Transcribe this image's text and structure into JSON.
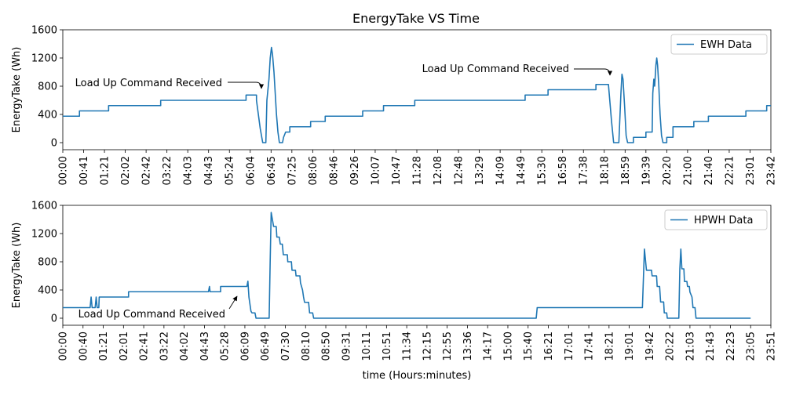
{
  "figure": {
    "title": "EnergyTake VS Time"
  },
  "chart_data": [
    {
      "type": "line",
      "title": "EnergyTake VS Time",
      "xlabel": "",
      "ylabel": "EnergyTake (Wh)",
      "ylim": [
        -100,
        1600
      ],
      "yticks": [
        0,
        400,
        800,
        1200,
        1600
      ],
      "xticks": [
        "00:00",
        "00:41",
        "01:21",
        "02:02",
        "02:42",
        "03:22",
        "04:03",
        "04:43",
        "05:24",
        "06:04",
        "06:45",
        "07:25",
        "08:06",
        "08:46",
        "09:26",
        "10:07",
        "10:47",
        "11:28",
        "12:08",
        "12:48",
        "13:29",
        "14:09",
        "14:49",
        "15:30",
        "16:58",
        "17:38",
        "18:18",
        "18:59",
        "19:39",
        "20:20",
        "21:00",
        "21:40",
        "22:21",
        "23:01",
        "23:42"
      ],
      "legend": "upper-right",
      "color": "#1f77b4",
      "series": [
        {
          "name": "EWH Data",
          "points": [
            [
              0,
              375
            ],
            [
              0.8,
              375
            ],
            [
              0.8,
              450
            ],
            [
              2.2,
              450
            ],
            [
              2.2,
              525
            ],
            [
              4.7,
              525
            ],
            [
              4.7,
              600
            ],
            [
              8.8,
              600
            ],
            [
              8.8,
              675
            ],
            [
              9.3,
              675
            ],
            [
              9.3,
              600
            ],
            [
              9.48,
              200
            ],
            [
              9.6,
              0
            ],
            [
              9.75,
              0
            ],
            [
              9.8,
              600
            ],
            [
              9.9,
              900
            ],
            [
              9.96,
              1200
            ],
            [
              10.02,
              1350
            ],
            [
              10.07,
              1250
            ],
            [
              10.14,
              1000
            ],
            [
              10.2,
              700
            ],
            [
              10.26,
              400
            ],
            [
              10.33,
              150
            ],
            [
              10.4,
              0
            ],
            [
              10.55,
              0
            ],
            [
              10.6,
              75
            ],
            [
              10.7,
              150
            ],
            [
              10.9,
              150
            ],
            [
              10.9,
              225
            ],
            [
              11.9,
              225
            ],
            [
              11.9,
              300
            ],
            [
              12.6,
              300
            ],
            [
              12.6,
              375
            ],
            [
              14.4,
              375
            ],
            [
              14.4,
              450
            ],
            [
              15.4,
              450
            ],
            [
              15.4,
              525
            ],
            [
              16.9,
              525
            ],
            [
              16.9,
              600
            ],
            [
              22.2,
              600
            ],
            [
              22.2,
              675
            ],
            [
              23.3,
              675
            ],
            [
              23.3,
              750
            ],
            [
              25.6,
              750
            ],
            [
              25.6,
              825
            ],
            [
              26.2,
              825
            ],
            [
              26.35,
              300
            ],
            [
              26.45,
              0
            ],
            [
              26.7,
              0
            ],
            [
              26.8,
              700
            ],
            [
              26.85,
              970
            ],
            [
              26.9,
              900
            ],
            [
              26.98,
              500
            ],
            [
              27.05,
              100
            ],
            [
              27.12,
              0
            ],
            [
              27.4,
              0
            ],
            [
              27.4,
              75
            ],
            [
              28,
              75
            ],
            [
              28,
              150
            ],
            [
              28.3,
              150
            ],
            [
              28.33,
              700
            ],
            [
              28.38,
              900
            ],
            [
              28.42,
              800
            ],
            [
              28.48,
              1100
            ],
            [
              28.52,
              1200
            ],
            [
              28.56,
              1100
            ],
            [
              28.62,
              800
            ],
            [
              28.68,
              400
            ],
            [
              28.75,
              100
            ],
            [
              28.82,
              0
            ],
            [
              29,
              0
            ],
            [
              29,
              75
            ],
            [
              29.3,
              75
            ],
            [
              29.3,
              225
            ],
            [
              30.3,
              225
            ],
            [
              30.3,
              300
            ],
            [
              31,
              300
            ],
            [
              31,
              375
            ],
            [
              32.8,
              375
            ],
            [
              32.8,
              450
            ],
            [
              33.8,
              450
            ],
            [
              33.8,
              525
            ],
            [
              34,
              525
            ]
          ]
        }
      ],
      "annotations": [
        {
          "text": "Load Up Command Received",
          "target": [
            9.3,
            675
          ]
        },
        {
          "text": "Load Up Command Received",
          "target": [
            26.15,
            850
          ]
        }
      ]
    },
    {
      "type": "line",
      "title": "",
      "xlabel": "time (Hours:minutes)",
      "ylabel": "EnergyTake (Wh)",
      "ylim": [
        -100,
        1600
      ],
      "yticks": [
        0,
        400,
        800,
        1200,
        1600
      ],
      "xticks": [
        "00:00",
        "00:40",
        "01:21",
        "02:01",
        "02:41",
        "03:22",
        "04:02",
        "04:43",
        "05:28",
        "06:09",
        "06:49",
        "07:30",
        "08:10",
        "08:50",
        "09:31",
        "10:11",
        "10:51",
        "11:34",
        "12:15",
        "12:55",
        "13:36",
        "14:17",
        "15:00",
        "15:40",
        "16:21",
        "17:01",
        "17:41",
        "18:21",
        "19:01",
        "19:42",
        "20:22",
        "21:03",
        "21:43",
        "22:23",
        "23:05",
        "23:51"
      ],
      "legend": "upper-right",
      "color": "#1f77b4",
      "series": [
        {
          "name": "HPWH Data",
          "points": [
            [
              0,
              150
            ],
            [
              1.35,
              150
            ],
            [
              1.4,
              300
            ],
            [
              1.45,
              150
            ],
            [
              1.6,
              150
            ],
            [
              1.65,
              300
            ],
            [
              1.7,
              150
            ],
            [
              1.78,
              150
            ],
            [
              1.8,
              300
            ],
            [
              3.25,
              300
            ],
            [
              3.25,
              375
            ],
            [
              7.2,
              375
            ],
            [
              7.25,
              450
            ],
            [
              7.28,
              375
            ],
            [
              7.8,
              375
            ],
            [
              7.8,
              450
            ],
            [
              9.1,
              450
            ],
            [
              9.15,
              525
            ],
            [
              9.2,
              300
            ],
            [
              9.3,
              100
            ],
            [
              9.35,
              75
            ],
            [
              9.5,
              75
            ],
            [
              9.55,
              0
            ],
            [
              10.2,
              0
            ],
            [
              10.25,
              800
            ],
            [
              10.3,
              1500
            ],
            [
              10.36,
              1400
            ],
            [
              10.42,
              1300
            ],
            [
              10.55,
              1300
            ],
            [
              10.58,
              1150
            ],
            [
              10.7,
              1150
            ],
            [
              10.75,
              1050
            ],
            [
              10.85,
              1050
            ],
            [
              10.9,
              900
            ],
            [
              11.1,
              900
            ],
            [
              11.12,
              800
            ],
            [
              11.3,
              800
            ],
            [
              11.33,
              680
            ],
            [
              11.5,
              680
            ],
            [
              11.53,
              600
            ],
            [
              11.72,
              600
            ],
            [
              11.75,
              500
            ],
            [
              11.85,
              400
            ],
            [
              11.9,
              300
            ],
            [
              11.95,
              225
            ],
            [
              12.15,
              225
            ],
            [
              12.2,
              75
            ],
            [
              12.35,
              75
            ],
            [
              12.4,
              0
            ],
            [
              23.4,
              0
            ],
            [
              23.45,
              150
            ],
            [
              28.65,
              150
            ],
            [
              28.75,
              980
            ],
            [
              28.85,
              680
            ],
            [
              29.1,
              680
            ],
            [
              29.13,
              600
            ],
            [
              29.35,
              600
            ],
            [
              29.38,
              450
            ],
            [
              29.5,
              450
            ],
            [
              29.55,
              230
            ],
            [
              29.7,
              230
            ],
            [
              29.73,
              75
            ],
            [
              29.85,
              75
            ],
            [
              29.88,
              0
            ],
            [
              30.45,
              0
            ],
            [
              30.5,
              700
            ],
            [
              30.55,
              980
            ],
            [
              30.6,
              700
            ],
            [
              30.7,
              700
            ],
            [
              30.73,
              520
            ],
            [
              30.85,
              520
            ],
            [
              30.88,
              450
            ],
            [
              30.97,
              450
            ],
            [
              31,
              370
            ],
            [
              31.1,
              300
            ],
            [
              31.15,
              150
            ],
            [
              31.25,
              150
            ],
            [
              31.3,
              0
            ],
            [
              34,
              0
            ]
          ]
        }
      ],
      "annotations": [
        {
          "text": "Load Up Command Received",
          "target": [
            8.55,
            430
          ]
        }
      ]
    }
  ]
}
